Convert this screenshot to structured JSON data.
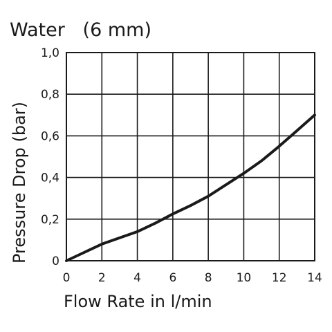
{
  "chart_data": {
    "type": "line",
    "title": "Water   (6 mm)",
    "xlabel": "Flow Rate in l/min",
    "ylabel": "Pressure Drop (bar)",
    "xlim": [
      0,
      14
    ],
    "ylim": [
      0,
      1.0
    ],
    "grid": true,
    "x_ticks": [
      {
        "value": 0,
        "label": "0"
      },
      {
        "value": 2,
        "label": "2"
      },
      {
        "value": 4,
        "label": "4"
      },
      {
        "value": 6,
        "label": "6"
      },
      {
        "value": 8,
        "label": "8"
      },
      {
        "value": 10,
        "label": "10"
      },
      {
        "value": 12,
        "label": "12"
      },
      {
        "value": 14,
        "label": "14"
      }
    ],
    "y_ticks": [
      {
        "value": 0,
        "label": "0"
      },
      {
        "value": 0.2,
        "label": "0,2"
      },
      {
        "value": 0.4,
        "label": "0,4"
      },
      {
        "value": 0.6,
        "label": "0,6"
      },
      {
        "value": 0.8,
        "label": "0,8"
      },
      {
        "value": 1.0,
        "label": "1,0"
      }
    ],
    "series": [
      {
        "x": [
          0,
          1,
          2,
          3,
          4,
          5,
          6,
          7,
          8,
          9,
          10,
          11,
          12,
          13,
          14
        ],
        "values": [
          0,
          0.04,
          0.08,
          0.11,
          0.14,
          0.18,
          0.225,
          0.265,
          0.31,
          0.365,
          0.42,
          0.48,
          0.55,
          0.625,
          0.7
        ]
      }
    ],
    "color": "#1a1a1a"
  }
}
